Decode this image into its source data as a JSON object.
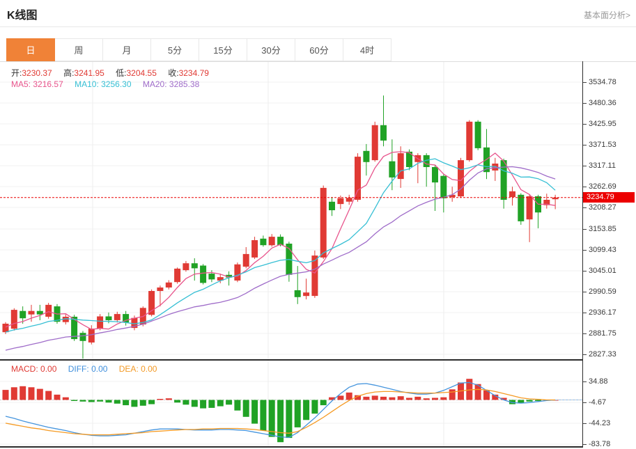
{
  "header": {
    "title": "K线图",
    "link": "基本面分析>"
  },
  "tabs": {
    "items": [
      {
        "label": "日",
        "active": true
      },
      {
        "label": "周",
        "active": false
      },
      {
        "label": "月",
        "active": false
      },
      {
        "label": "5分",
        "active": false
      },
      {
        "label": "15分",
        "active": false
      },
      {
        "label": "30分",
        "active": false
      },
      {
        "label": "60分",
        "active": false
      },
      {
        "label": "4时",
        "active": false
      }
    ]
  },
  "quote_bar": {
    "items": [
      {
        "label": "开:",
        "value": "3230.37"
      },
      {
        "label": "高:",
        "value": "3241.95"
      },
      {
        "label": "低:",
        "value": "3204.55"
      },
      {
        "label": "收:",
        "value": "3234.79"
      }
    ]
  },
  "ma_bar": {
    "items": [
      {
        "label": "MA5:",
        "value": "3216.57",
        "color": "#e8548c"
      },
      {
        "label": "MA10:",
        "value": "3256.30",
        "color": "#36bfd4"
      },
      {
        "label": "MA20:",
        "value": "3285.38",
        "color": "#9f6cc9"
      }
    ]
  },
  "macd_bar": {
    "items": [
      {
        "label": "MACD:",
        "value": "0.00",
        "color": "#e03a34"
      },
      {
        "label": "DIFF:",
        "value": "0.00",
        "color": "#3f8fdc"
      },
      {
        "label": "DEA:",
        "value": "0.00",
        "color": "#f39a26"
      }
    ]
  },
  "y_axis": {
    "main_labels": [
      "3534.78",
      "3480.36",
      "3425.95",
      "3371.53",
      "3317.11",
      "3262.69",
      "3208.27",
      "3153.85",
      "3099.43",
      "3045.01",
      "2990.59",
      "2936.17",
      "2881.75",
      "2827.33"
    ],
    "macd_labels": [
      "34.88",
      "-4.67",
      "-44.23",
      "-83.78"
    ],
    "current_price_label": "3234.79",
    "current_price": 3234.79
  },
  "chart_data": {
    "type": "candlestick",
    "title": "K线图",
    "period": "日",
    "ylim_main": [
      2812,
      3590
    ],
    "ylim_macd": [
      -95,
      48
    ],
    "grid": true,
    "legend_position": "top-left",
    "candles": [
      [
        2885,
        2911,
        2880,
        2907
      ],
      [
        2894,
        2947,
        2889,
        2943
      ],
      [
        2940,
        2952,
        2907,
        2921
      ],
      [
        2931,
        2956,
        2912,
        2940
      ],
      [
        2940,
        2956,
        2916,
        2931
      ],
      [
        2925,
        2961,
        2920,
        2956
      ],
      [
        2952,
        2958,
        2907,
        2912
      ],
      [
        2911,
        2931,
        2905,
        2925
      ],
      [
        2925,
        2930,
        2862,
        2867
      ],
      [
        2883,
        2888,
        2816,
        2862
      ],
      [
        2858,
        2903,
        2853,
        2894
      ],
      [
        2894,
        2932,
        2890,
        2926
      ],
      [
        2926,
        2936,
        2908,
        2916
      ],
      [
        2916,
        2938,
        2910,
        2932
      ],
      [
        2932,
        2940,
        2902,
        2910
      ],
      [
        2896,
        2928,
        2890,
        2922
      ],
      [
        2905,
        2952,
        2900,
        2948
      ],
      [
        2930,
        2996,
        2926,
        2992
      ],
      [
        2992,
        3006,
        2952,
        3001
      ],
      [
        3001,
        3020,
        2996,
        3014
      ],
      [
        3015,
        3053,
        3011,
        3050
      ],
      [
        3046,
        3070,
        3042,
        3064
      ],
      [
        3064,
        3077,
        3019,
        3051
      ],
      [
        3058,
        3062,
        3009,
        3013
      ],
      [
        3037,
        3046,
        3015,
        3022
      ],
      [
        3019,
        3037,
        3012,
        3028
      ],
      [
        3034,
        3043,
        3006,
        3027
      ],
      [
        3019,
        3066,
        3015,
        3061
      ],
      [
        3055,
        3106,
        3051,
        3088
      ],
      [
        3079,
        3133,
        3075,
        3124
      ],
      [
        3128,
        3136,
        3107,
        3111
      ],
      [
        3111,
        3140,
        3107,
        3133
      ],
      [
        3133,
        3139,
        3108,
        3111
      ],
      [
        3115,
        3120,
        3016,
        3034
      ],
      [
        2994,
        3057,
        2958,
        2976
      ],
      [
        2979,
        3024,
        2970,
        2988
      ],
      [
        2979,
        3097,
        2974,
        3084
      ],
      [
        3079,
        3266,
        3075,
        3260
      ],
      [
        3224,
        3236,
        3187,
        3202
      ],
      [
        3218,
        3240,
        3205,
        3233
      ],
      [
        3224,
        3242,
        3216,
        3234
      ],
      [
        3229,
        3350,
        3224,
        3341
      ],
      [
        3356,
        3374,
        3292,
        3327
      ],
      [
        3332,
        3432,
        3328,
        3423
      ],
      [
        3423,
        3500,
        3368,
        3383
      ],
      [
        3329,
        3386,
        3254,
        3287
      ],
      [
        3283,
        3368,
        3260,
        3350
      ],
      [
        3354,
        3360,
        3306,
        3314
      ],
      [
        3327,
        3350,
        3272,
        3345
      ],
      [
        3345,
        3350,
        3263,
        3314
      ],
      [
        3314,
        3320,
        3200,
        3274
      ],
      [
        3291,
        3296,
        3196,
        3233
      ],
      [
        3236,
        3263,
        3224,
        3242
      ],
      [
        3238,
        3338,
        3234,
        3332
      ],
      [
        3332,
        3436,
        3328,
        3432
      ],
      [
        3432,
        3436,
        3358,
        3363
      ],
      [
        3365,
        3413,
        3283,
        3301
      ],
      [
        3305,
        3338,
        3278,
        3323
      ],
      [
        3332,
        3336,
        3206,
        3229
      ],
      [
        3236,
        3263,
        3214,
        3251
      ],
      [
        3242,
        3246,
        3164,
        3173
      ],
      [
        3178,
        3242,
        3119,
        3238
      ],
      [
        3238,
        3242,
        3155,
        3196
      ],
      [
        3215,
        3245,
        3206,
        3229
      ],
      [
        3230.37,
        3241.95,
        3204.55,
        3234.79
      ]
    ],
    "ma_periods": [
      5,
      10,
      20
    ],
    "ma_left_edge": {
      "ma5": 2898,
      "ma10": 2885,
      "ma20": 2838
    },
    "ma_current": {
      "ma5": 3216.57,
      "ma10": 3256.3,
      "ma20": 3285.38
    },
    "macd": {
      "histogram": [
        19,
        24,
        26,
        24,
        21,
        17,
        10,
        5,
        -2,
        -3,
        -4,
        -3,
        -5,
        -7,
        -10,
        -13,
        -11,
        -8,
        2,
        3,
        -5,
        -9,
        -13,
        -16,
        -15,
        -12,
        -9,
        -20,
        -32,
        -45,
        -58,
        -70,
        -80,
        -72,
        -52,
        -38,
        -26,
        -10,
        5,
        8,
        14,
        9,
        6,
        8,
        6,
        5,
        7,
        4,
        6,
        3,
        4,
        5,
        20,
        33,
        40,
        30,
        18,
        10,
        4,
        -8,
        -6,
        -3,
        -2,
        -1,
        0
      ],
      "diff": [
        -31,
        -35,
        -40,
        -44,
        -48,
        -52,
        -55,
        -58,
        -62,
        -65,
        -67,
        -68,
        -68,
        -67,
        -66,
        -63,
        -60,
        -57,
        -55,
        -55,
        -55,
        -56,
        -57,
        -57,
        -57,
        -56,
        -56,
        -57,
        -58,
        -61,
        -64,
        -67,
        -70,
        -71,
        -62,
        -48,
        -34,
        -18,
        -2,
        12,
        24,
        30,
        31,
        28,
        24,
        20,
        16,
        13,
        11,
        11,
        13,
        18,
        25,
        32,
        33,
        28,
        18,
        8,
        0,
        -5,
        -6,
        -5,
        -3,
        -1,
        0
      ],
      "dea": [
        -44,
        -47,
        -50,
        -53,
        -55,
        -58,
        -60,
        -62,
        -64,
        -65,
        -66,
        -66,
        -66,
        -65,
        -64,
        -63,
        -62,
        -60,
        -59,
        -58,
        -57,
        -56,
        -56,
        -55,
        -55,
        -54,
        -54,
        -54,
        -55,
        -56,
        -58,
        -60,
        -62,
        -63,
        -60,
        -52,
        -43,
        -33,
        -22,
        -11,
        -1,
        7,
        12,
        15,
        16,
        16,
        15,
        14,
        13,
        13,
        13,
        14,
        15,
        17,
        19,
        20,
        19,
        16,
        12,
        8,
        4,
        2,
        1,
        0,
        0
      ]
    },
    "colors": {
      "up": "#e03a34",
      "down": "#20a225",
      "ma5": "#e8548c",
      "ma10": "#36bfd4",
      "ma20": "#9f6cc9",
      "diff_line": "#4494dd",
      "dea_line": "#f59a23",
      "current_price": "#ec0000",
      "accent_tab": "#f08237"
    }
  }
}
